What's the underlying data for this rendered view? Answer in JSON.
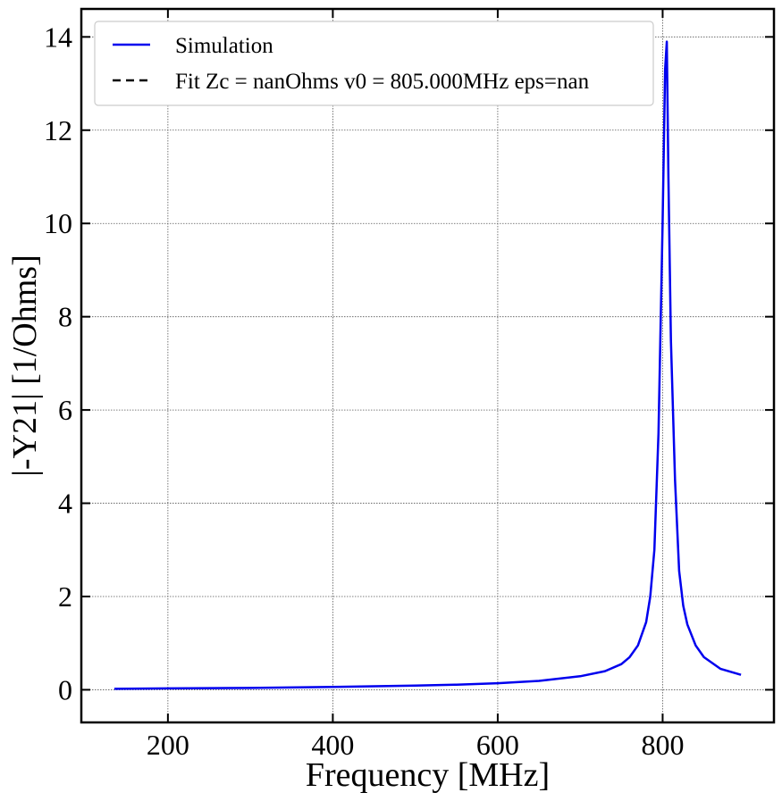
{
  "chart_data": {
    "type": "line",
    "title": "",
    "xlabel": "Frequency [MHz]",
    "ylabel": "|-Y21| [1/Ohms]",
    "xlim": [
      95,
      935
    ],
    "ylim": [
      -0.7,
      14.6
    ],
    "xticks": [
      200,
      400,
      600,
      800
    ],
    "yticks": [
      0,
      2,
      4,
      6,
      8,
      10,
      12,
      14
    ],
    "xtick_labels": [
      "200",
      "400",
      "600",
      "800"
    ],
    "ytick_labels": [
      "0",
      "2",
      "4",
      "6",
      "8",
      "10",
      "12",
      "14"
    ],
    "grid": true,
    "legend_position": "top-left",
    "legend": [
      {
        "label": "Simulation",
        "color": "#0000ee",
        "style": "solid"
      },
      {
        "label": "Fit Zc = nanOhms v0 = 805.000MHz eps=nan",
        "color": "#000000",
        "style": "dashed"
      }
    ],
    "series": [
      {
        "name": "Simulation",
        "color": "#0000ee",
        "style": "solid",
        "x": [
          135,
          200,
          300,
          400,
          500,
          550,
          600,
          650,
          700,
          730,
          750,
          760,
          770,
          780,
          785,
          790,
          795,
          800,
          803,
          805,
          807,
          810,
          815,
          820,
          825,
          830,
          840,
          850,
          870,
          895
        ],
        "y": [
          0.02,
          0.03,
          0.04,
          0.06,
          0.09,
          0.11,
          0.14,
          0.19,
          0.29,
          0.4,
          0.55,
          0.7,
          0.95,
          1.45,
          2.0,
          3.0,
          5.5,
          10.0,
          13.3,
          13.9,
          11.0,
          7.5,
          4.5,
          2.55,
          1.8,
          1.4,
          0.95,
          0.7,
          0.45,
          0.32
        ]
      }
    ]
  }
}
